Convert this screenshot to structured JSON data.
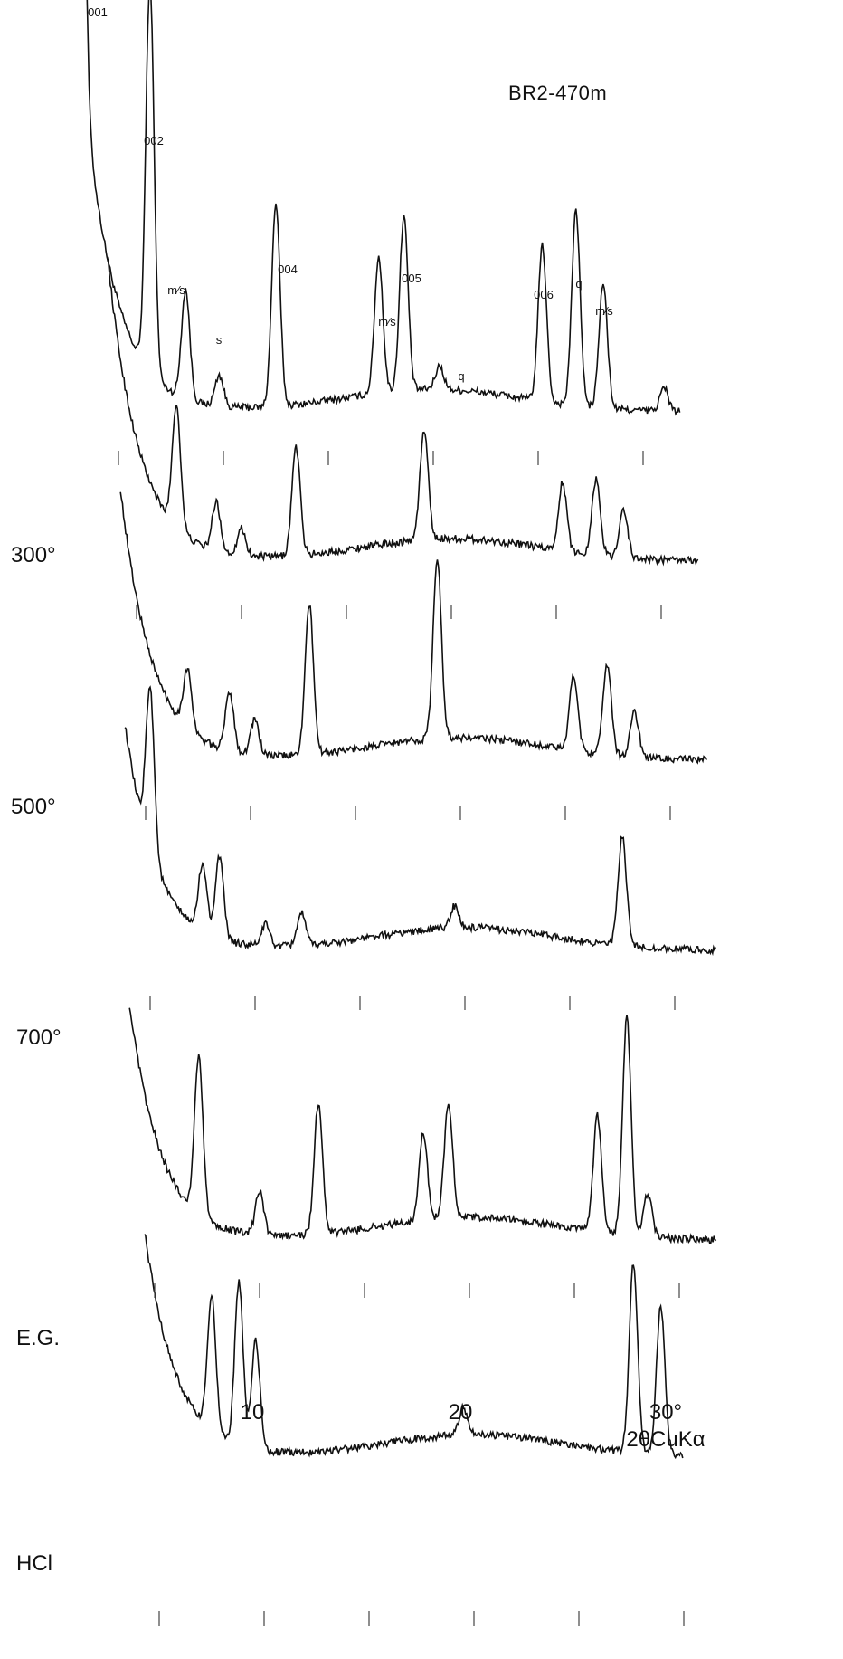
{
  "chart_data": {
    "type": "line",
    "title": "BR2-470m",
    "x_unit_label": "2θCuKα",
    "x_tick_labels": [
      "10",
      "20",
      "30°"
    ],
    "x_ticks": [
      5,
      10,
      15,
      20,
      25,
      30
    ],
    "xlim": [
      3,
      32
    ],
    "grid": false,
    "legend": "none",
    "series": [
      {
        "name": "",
        "peaks": [
          {
            "x": 3.2,
            "h": 1.0
          },
          {
            "x": 6.5,
            "h": 1.0
          },
          {
            "x": 8.2,
            "h": 0.28
          },
          {
            "x": 9.8,
            "h": 0.08
          },
          {
            "x": 12.5,
            "h": 0.52
          },
          {
            "x": 17.4,
            "h": 0.35
          },
          {
            "x": 18.6,
            "h": 0.45
          },
          {
            "x": 20.3,
            "h": 0.06
          },
          {
            "x": 25.2,
            "h": 0.4
          },
          {
            "x": 26.8,
            "h": 0.5
          },
          {
            "x": 28.1,
            "h": 0.32
          },
          {
            "x": 31.0,
            "h": 0.06
          }
        ]
      },
      {
        "name": "300°",
        "peaks": [
          {
            "x": 6.9,
            "h": 0.45
          },
          {
            "x": 8.8,
            "h": 0.18
          },
          {
            "x": 10.0,
            "h": 0.1
          },
          {
            "x": 12.6,
            "h": 0.4
          },
          {
            "x": 18.7,
            "h": 0.4
          },
          {
            "x": 25.3,
            "h": 0.25
          },
          {
            "x": 26.9,
            "h": 0.28
          },
          {
            "x": 28.2,
            "h": 0.18
          }
        ]
      },
      {
        "name": "500°",
        "peaks": [
          {
            "x": 7.0,
            "h": 0.2
          },
          {
            "x": 9.0,
            "h": 0.2
          },
          {
            "x": 10.2,
            "h": 0.12
          },
          {
            "x": 12.8,
            "h": 0.5
          },
          {
            "x": 18.9,
            "h": 0.6
          },
          {
            "x": 25.4,
            "h": 0.25
          },
          {
            "x": 27.0,
            "h": 0.3
          },
          {
            "x": 28.3,
            "h": 0.15
          }
        ]
      },
      {
        "name": "700°",
        "peaks": [
          {
            "x": 5.0,
            "h": 0.6
          },
          {
            "x": 7.5,
            "h": 0.25
          },
          {
            "x": 8.3,
            "h": 0.3
          },
          {
            "x": 10.5,
            "h": 0.08
          },
          {
            "x": 12.2,
            "h": 0.12
          },
          {
            "x": 19.5,
            "h": 0.08
          },
          {
            "x": 27.5,
            "h": 0.4
          }
        ]
      },
      {
        "name": "E.G.",
        "peaks": [
          {
            "x": 7.1,
            "h": 0.55
          },
          {
            "x": 10.0,
            "h": 0.15
          },
          {
            "x": 12.8,
            "h": 0.45
          },
          {
            "x": 17.8,
            "h": 0.3
          },
          {
            "x": 19.0,
            "h": 0.4
          },
          {
            "x": 26.1,
            "h": 0.4
          },
          {
            "x": 27.5,
            "h": 0.75
          },
          {
            "x": 28.5,
            "h": 0.15
          }
        ]
      },
      {
        "name": "HCl",
        "peaks": [
          {
            "x": 7.5,
            "h": 0.5
          },
          {
            "x": 8.8,
            "h": 0.6
          },
          {
            "x": 9.6,
            "h": 0.4
          },
          {
            "x": 19.5,
            "h": 0.1
          },
          {
            "x": 27.6,
            "h": 0.7
          },
          {
            "x": 28.9,
            "h": 0.55
          }
        ]
      }
    ],
    "peak_labels": [
      "001",
      "002",
      "m⁄s",
      "s",
      "004",
      "m⁄s",
      "005",
      "q",
      "006",
      "q",
      "m⁄s"
    ]
  }
}
